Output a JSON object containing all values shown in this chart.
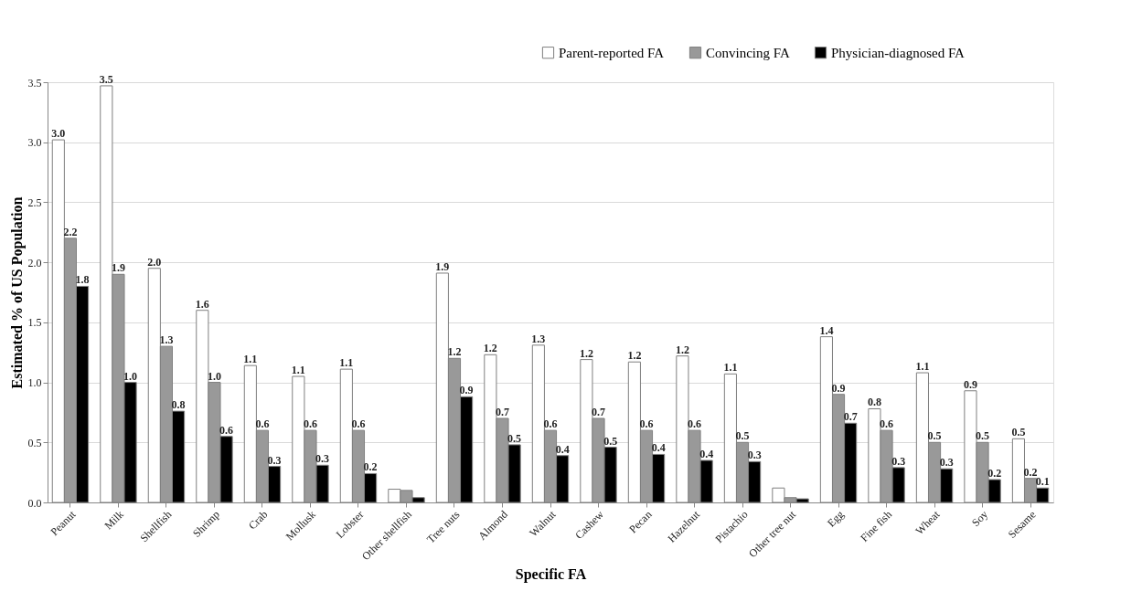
{
  "chart_data": {
    "type": "bar",
    "xlabel": "Specific FA",
    "ylabel": "Estimated % of US Population",
    "categories": [
      "Peanut",
      "Milk",
      "Shellfish",
      "Shrimp",
      "Crab",
      "Mollusk",
      "Lobster",
      "Other shellfish",
      "Tree nuts",
      "Almond",
      "Walnut",
      "Cashew",
      "Pecan",
      "Hazelnut",
      "Pistachio",
      "Other tree nut",
      "Egg",
      "Fine fish",
      "Wheat",
      "Soy",
      "Sesame"
    ],
    "series": [
      {
        "name": "Parent-reported FA",
        "color": "#ffffff",
        "values": [
          3.02,
          3.47,
          1.95,
          1.6,
          1.14,
          1.05,
          1.11,
          0.11,
          1.91,
          1.23,
          1.31,
          1.19,
          1.17,
          1.22,
          1.07,
          0.12,
          1.38,
          0.78,
          1.08,
          0.93,
          0.53
        ],
        "value_labels": [
          "3.0",
          "3.5",
          "2.0",
          "1.6",
          "1.1",
          "1.1",
          "1.1",
          null,
          "1.9",
          "1.2",
          "1.3",
          "1.2",
          "1.2",
          "1.2",
          "1.1",
          null,
          "1.4",
          "0.8",
          "1.1",
          "0.9",
          "0.5"
        ]
      },
      {
        "name": "Convincing FA",
        "color": "#999999",
        "values": [
          2.2,
          1.9,
          1.3,
          1.0,
          0.6,
          0.6,
          0.6,
          0.1,
          1.2,
          0.7,
          0.6,
          0.7,
          0.6,
          0.6,
          0.5,
          0.04,
          0.9,
          0.6,
          0.5,
          0.5,
          0.2
        ],
        "value_labels": [
          "2.2",
          "1.9",
          "1.3",
          "1.0",
          "0.6",
          "0.6",
          "0.6",
          null,
          "1.2",
          "0.7",
          "0.6",
          "0.7",
          "0.6",
          "0.6",
          "0.5",
          null,
          "0.9",
          "0.6",
          "0.5",
          "0.5",
          "0.2"
        ]
      },
      {
        "name": "Physician-diagnosed FA",
        "color": "#000000",
        "values": [
          1.8,
          1.0,
          0.76,
          0.55,
          0.3,
          0.31,
          0.24,
          0.04,
          0.88,
          0.48,
          0.39,
          0.46,
          0.4,
          0.35,
          0.34,
          0.03,
          0.66,
          0.29,
          0.28,
          0.19,
          0.12
        ],
        "value_labels": [
          "1.8",
          "1.0",
          "0.8",
          "0.6",
          "0.3",
          "0.3",
          "0.2",
          null,
          "0.9",
          "0.5",
          "0.4",
          "0.5",
          "0.4",
          "0.4",
          "0.3",
          null,
          "0.7",
          "0.3",
          "0.3",
          "0.2",
          "0.1"
        ]
      }
    ],
    "ylim": [
      0,
      3.5
    ],
    "yticks": [
      {
        "value": 0,
        "label": "0.0"
      },
      0.5,
      {
        "value": 1,
        "label": "1.0"
      },
      1.5,
      {
        "value": 2,
        "label": "2.0"
      },
      2.5,
      {
        "value": 3,
        "label": "3.0"
      },
      3.5
    ],
    "grid": "y",
    "legend": "top right"
  }
}
